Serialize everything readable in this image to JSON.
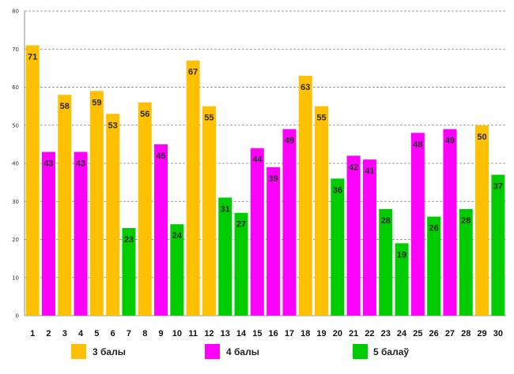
{
  "chart_data": {
    "type": "bar",
    "title": "",
    "xlabel": "",
    "ylabel": "",
    "ylim": [
      0,
      80
    ],
    "ytick_step": 10,
    "grid": "horizontal-dashed",
    "categories": [
      "1",
      "2",
      "3",
      "4",
      "5",
      "6",
      "7",
      "8",
      "9",
      "10",
      "11",
      "12",
      "13",
      "14",
      "15",
      "16",
      "17",
      "18",
      "19",
      "20",
      "21",
      "22",
      "23",
      "24",
      "25",
      "26",
      "27",
      "28",
      "29",
      "30"
    ],
    "values": [
      71,
      43,
      58,
      43,
      59,
      53,
      23,
      56,
      45,
      24,
      67,
      55,
      31,
      27,
      44,
      39,
      49,
      63,
      55,
      36,
      42,
      41,
      28,
      19,
      48,
      26,
      49,
      28,
      50,
      37
    ],
    "groups": [
      "g3",
      "g4",
      "g3",
      "g4",
      "g3",
      "g3",
      "g5",
      "g3",
      "g4",
      "g5",
      "g3",
      "g3",
      "g5",
      "g5",
      "g4",
      "g4",
      "g4",
      "g3",
      "g3",
      "g5",
      "g4",
      "g4",
      "g5",
      "g5",
      "g4",
      "g5",
      "g4",
      "g5",
      "g3",
      "g5"
    ],
    "series": [
      {
        "key": "g3",
        "name": "3 балы",
        "color": "#FFC000"
      },
      {
        "key": "g4",
        "name": "4 балы",
        "color": "#FF00FF"
      },
      {
        "key": "g5",
        "name": "5 балаў",
        "color": "#00CC00"
      }
    ],
    "legend_position": "bottom"
  }
}
